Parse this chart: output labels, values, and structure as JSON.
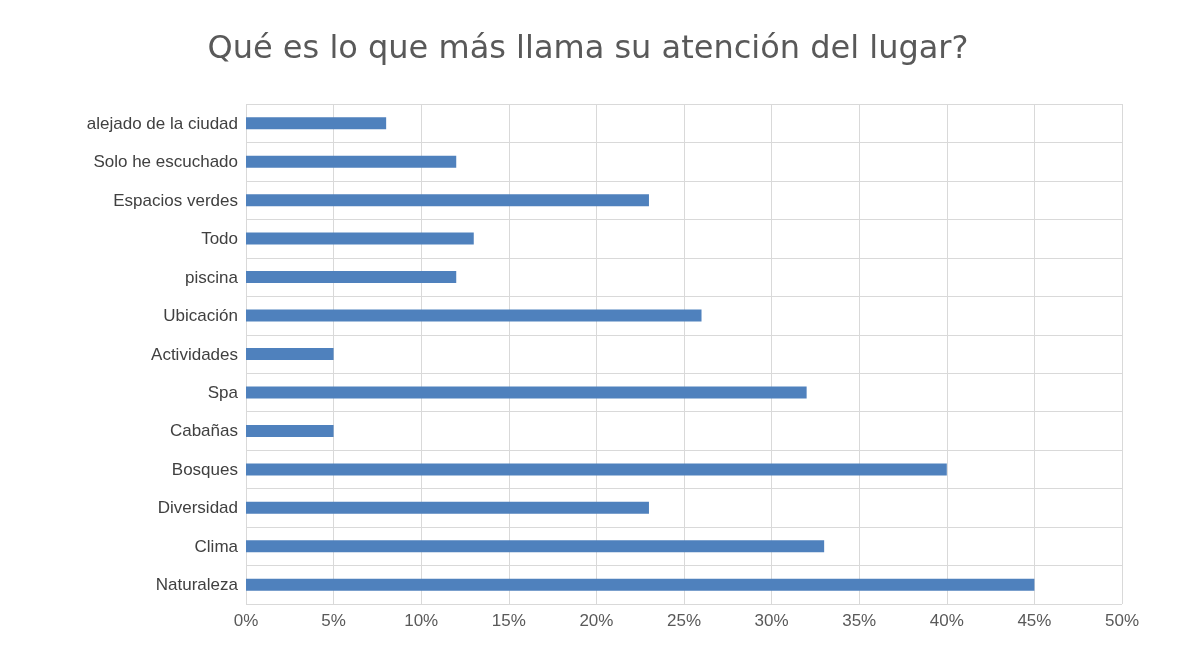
{
  "chart_data": {
    "type": "bar",
    "orientation": "horizontal",
    "title": "Qué es lo que más llama su atención del lugar?",
    "categories": [
      "alejado de la ciudad",
      "Solo he escuchado",
      "Espacios verdes",
      "Todo",
      "piscina",
      "Ubicación",
      "Actividades",
      "Spa",
      "Cabañas",
      "Bosques",
      "Diversidad",
      "Clima",
      "Naturaleza"
    ],
    "values": [
      8,
      12,
      23,
      13,
      12,
      26,
      5,
      32,
      5,
      40,
      23,
      33,
      45
    ],
    "color": "#4f81bd",
    "xlim": [
      0,
      50
    ],
    "xticks": [
      {
        "value": 0,
        "label": "0%"
      },
      {
        "value": 5,
        "label": "5%"
      },
      {
        "value": 10,
        "label": "10%"
      },
      {
        "value": 15,
        "label": "15%"
      },
      {
        "value": 20,
        "label": "20%"
      },
      {
        "value": 25,
        "label": "25%"
      },
      {
        "value": 30,
        "label": "30%"
      },
      {
        "value": 35,
        "label": "35%"
      },
      {
        "value": 40,
        "label": "40%"
      },
      {
        "value": 45,
        "label": "45%"
      },
      {
        "value": 50,
        "label": "50%"
      }
    ],
    "grid": true
  }
}
